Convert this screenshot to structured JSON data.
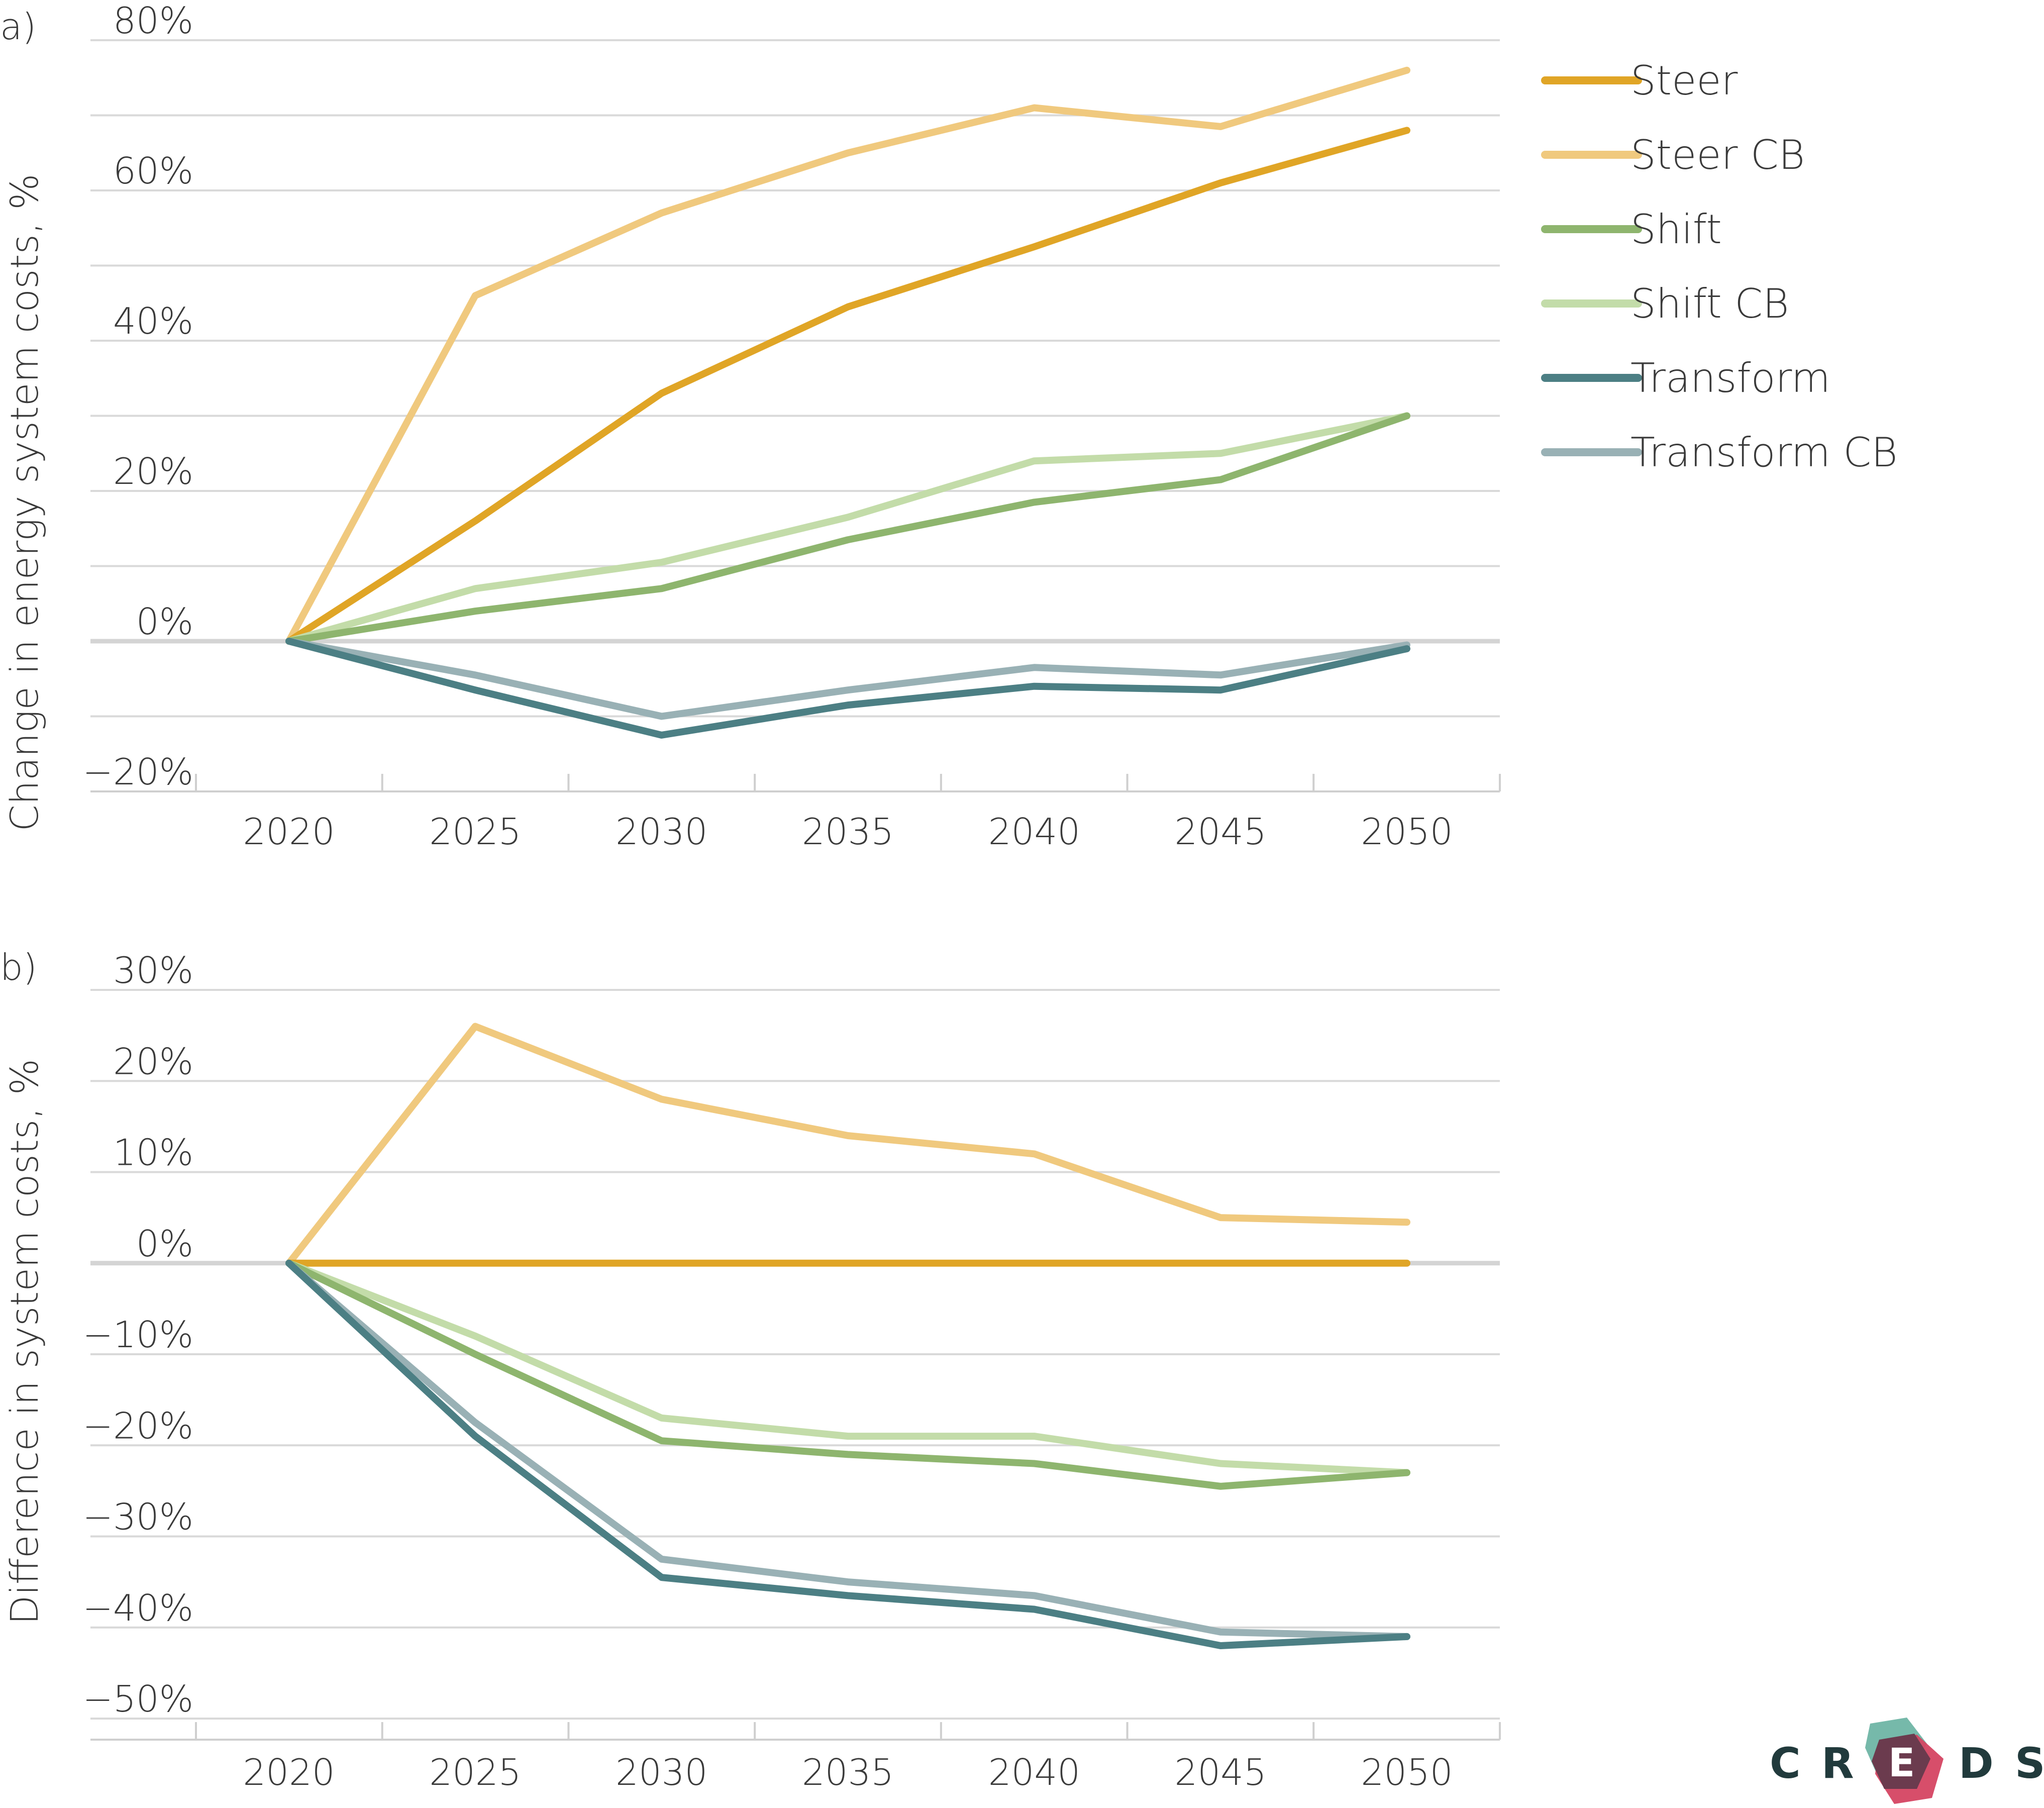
{
  "legend": [
    {
      "name": "Steer",
      "color": "#E0A526"
    },
    {
      "name": "Steer CB",
      "color": "#F0C97E"
    },
    {
      "name": "Shift",
      "color": "#8EB56E"
    },
    {
      "name": "Shift CB",
      "color": "#C3DCA9"
    },
    {
      "name": "Transform",
      "color": "#4C7F84"
    },
    {
      "name": "Transform CB",
      "color": "#99B1B5"
    }
  ],
  "logo": {
    "letters": [
      "C",
      "R",
      "E",
      "D",
      "S"
    ],
    "colors": [
      "#6FB5A5",
      "#D54562",
      "#6B3B4E"
    ]
  },
  "chart_data": [
    {
      "panel_label": "a)",
      "type": "line",
      "x": [
        2020,
        2025,
        2030,
        2035,
        2040,
        2045,
        2050
      ],
      "x_tick_labels": [
        "2020",
        "2025",
        "2030",
        "2035",
        "2040",
        "2045",
        "2050"
      ],
      "ylabel": "Change in energy system costs, %",
      "ylim": [
        -20,
        80
      ],
      "y_tick_values": [
        -20,
        0,
        20,
        40,
        60,
        80
      ],
      "y_tick_labels": [
        "−20%",
        "0%",
        "20%",
        "40%",
        "60%",
        "80%"
      ],
      "grid": true,
      "grid_step": 10,
      "series": [
        {
          "name": "Steer CB",
          "values": [
            0,
            46,
            57,
            65,
            71,
            68.5,
            76
          ]
        },
        {
          "name": "Steer",
          "values": [
            0,
            16,
            33,
            44.5,
            52.5,
            61,
            68
          ]
        },
        {
          "name": "Shift CB",
          "values": [
            0,
            7,
            10.5,
            16.5,
            24,
            25,
            30
          ]
        },
        {
          "name": "Shift",
          "values": [
            0,
            4,
            7,
            13.5,
            18.5,
            21.5,
            30
          ]
        },
        {
          "name": "Transform CB",
          "values": [
            0,
            -4.5,
            -10,
            -6.5,
            -3.5,
            -4.5,
            -0.5
          ]
        },
        {
          "name": "Transform",
          "values": [
            0,
            -6.5,
            -12.5,
            -8.5,
            -6,
            -6.5,
            -1
          ]
        }
      ]
    },
    {
      "panel_label": "b)",
      "type": "line",
      "x": [
        2020,
        2025,
        2030,
        2035,
        2040,
        2045,
        2050
      ],
      "x_tick_labels": [
        "2020",
        "2025",
        "2030",
        "2035",
        "2040",
        "2045",
        "2050"
      ],
      "ylabel": "Difference in system costs, %",
      "ylim": [
        -50,
        30
      ],
      "y_tick_values": [
        -50,
        -40,
        -30,
        -20,
        -10,
        0,
        10,
        20,
        30
      ],
      "y_tick_labels": [
        "−50%",
        "−40%",
        "−30%",
        "−20%",
        "−10%",
        "0%",
        "10%",
        "20%",
        "30%"
      ],
      "grid": true,
      "grid_step": 10,
      "series": [
        {
          "name": "Steer CB",
          "values": [
            0,
            26,
            18,
            14,
            12,
            5,
            4.5
          ]
        },
        {
          "name": "Steer",
          "values": [
            0,
            0,
            0,
            0,
            0,
            0,
            0
          ]
        },
        {
          "name": "Shift CB",
          "values": [
            0,
            -8,
            -17,
            -19,
            -19,
            -22,
            -23
          ]
        },
        {
          "name": "Shift",
          "values": [
            0,
            -10,
            -19.5,
            -21,
            -22,
            -24.5,
            -23
          ]
        },
        {
          "name": "Transform CB",
          "values": [
            0,
            -17.5,
            -32.5,
            -35,
            -36.5,
            -40.5,
            -41
          ]
        },
        {
          "name": "Transform",
          "values": [
            0,
            -19,
            -34.5,
            -36.5,
            -38,
            -42,
            -41
          ]
        }
      ]
    }
  ]
}
